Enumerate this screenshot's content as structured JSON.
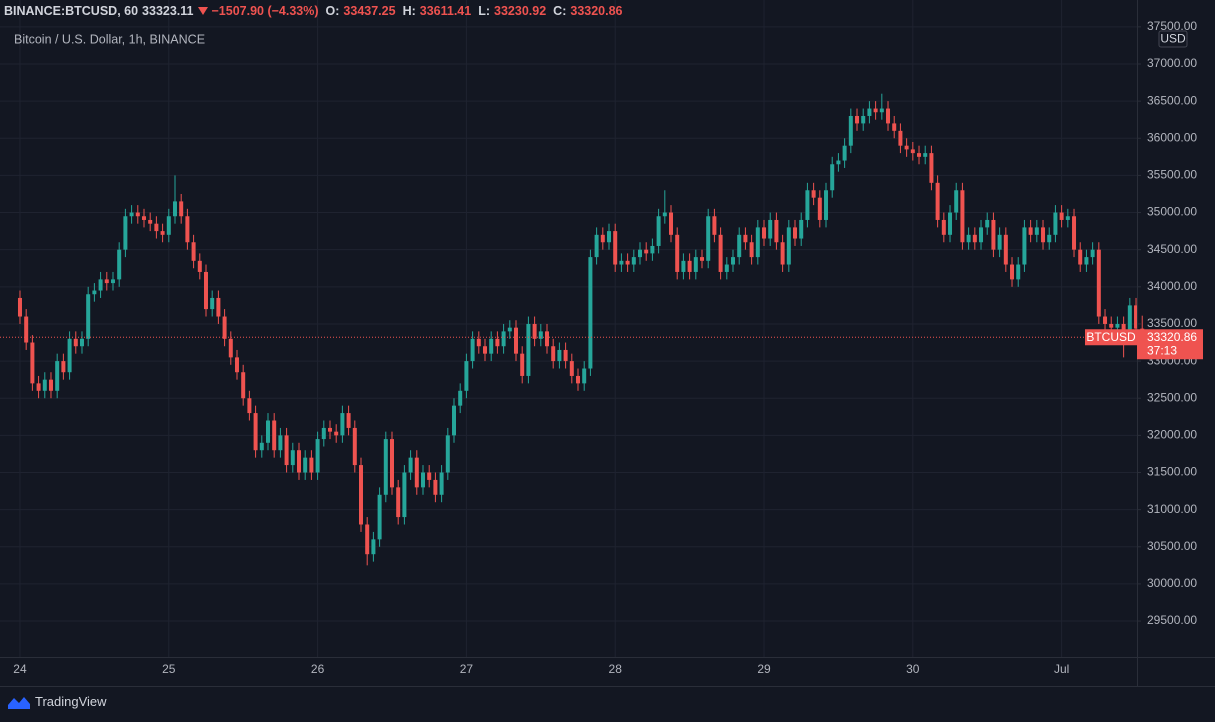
{
  "chart_data": {
    "type": "candlestick",
    "header": {
      "symbol": "BINANCE:BTCUSD, 60",
      "price": 33323.11,
      "change": "−1507.90 (−4.33%)",
      "open_label": "O:",
      "open": 33437.25,
      "high_label": "H:",
      "high": 33611.41,
      "low_label": "L:",
      "low": 33230.92,
      "close_label": "C:",
      "close": 33320.86
    },
    "title": "Bitcoin / U.S. Dollar, 1h, BINANCE",
    "currency": "USD",
    "last_price": {
      "name": "BTCUSD",
      "value": 33320.86,
      "countdown": "37:13"
    },
    "up_color": "#26a69a",
    "down_color": "#ef5350",
    "ylim": [
      29016,
      37673
    ],
    "yticks": [
      {
        "value": 37500,
        "label": "37500.00"
      },
      {
        "value": 37000,
        "label": "37000.00"
      },
      {
        "value": 36500,
        "label": "36500.00"
      },
      {
        "value": 36000,
        "label": "36000.00"
      },
      {
        "value": 35500,
        "label": "35500.00"
      },
      {
        "value": 35000,
        "label": "35000.00"
      },
      {
        "value": 34500,
        "label": "34500.00"
      },
      {
        "value": 34000,
        "label": "34000.00"
      },
      {
        "value": 33500,
        "label": "33500.00"
      },
      {
        "value": 33000,
        "label": "33000.00"
      },
      {
        "value": 32500,
        "label": "32500.00"
      },
      {
        "value": 32000,
        "label": "32000.00"
      },
      {
        "value": 31500,
        "label": "31500.00"
      },
      {
        "value": 31000,
        "label": "31000.00"
      },
      {
        "value": 30500,
        "label": "30500.00"
      },
      {
        "value": 30000,
        "label": "30000.00"
      },
      {
        "value": 29500,
        "label": "29500.00"
      }
    ],
    "xlim": [
      -1.61,
      181.77
    ],
    "xticks": [
      {
        "value": 0,
        "label": "24"
      },
      {
        "value": 24,
        "label": "25"
      },
      {
        "value": 48,
        "label": "26"
      },
      {
        "value": 72,
        "label": "27"
      },
      {
        "value": 96,
        "label": "28"
      },
      {
        "value": 120,
        "label": "29"
      },
      {
        "value": 144,
        "label": "30"
      },
      {
        "value": 168,
        "label": "Jul"
      }
    ],
    "grid": true,
    "candles": [
      [
        33850,
        33950,
        33500,
        33600
      ],
      [
        33600,
        33700,
        33150,
        33250
      ],
      [
        33250,
        33350,
        32600,
        32700
      ],
      [
        32700,
        32800,
        32500,
        32600
      ],
      [
        32600,
        32850,
        32500,
        32750
      ],
      [
        32750,
        32850,
        32500,
        32600
      ],
      [
        32600,
        33100,
        32500,
        33000
      ],
      [
        33000,
        33100,
        32750,
        32850
      ],
      [
        32850,
        33400,
        32750,
        33300
      ],
      [
        33300,
        33400,
        33100,
        33200
      ],
      [
        33200,
        33400,
        33100,
        33300
      ],
      [
        33300,
        34000,
        33200,
        33900
      ],
      [
        33900,
        34050,
        33800,
        33950
      ],
      [
        33950,
        34200,
        33850,
        34100
      ],
      [
        34100,
        34200,
        33950,
        34050
      ],
      [
        34050,
        34200,
        33950,
        34100
      ],
      [
        34100,
        34600,
        34000,
        34500
      ],
      [
        34500,
        35050,
        34400,
        34950
      ],
      [
        34950,
        35100,
        34850,
        35000
      ],
      [
        35000,
        35100,
        34850,
        34950
      ],
      [
        34950,
        35050,
        34800,
        34900
      ],
      [
        34900,
        35000,
        34750,
        34850
      ],
      [
        34850,
        34950,
        34650,
        34750
      ],
      [
        34750,
        34850,
        34600,
        34700
      ],
      [
        34700,
        35050,
        34600,
        34950
      ],
      [
        34950,
        35500,
        34850,
        35150
      ],
      [
        35150,
        35250,
        34850,
        34950
      ],
      [
        34950,
        35050,
        34500,
        34600
      ],
      [
        34600,
        34700,
        34250,
        34350
      ],
      [
        34350,
        34450,
        34100,
        34200
      ],
      [
        34200,
        34300,
        33600,
        33700
      ],
      [
        33700,
        33950,
        33600,
        33850
      ],
      [
        33850,
        33950,
        33500,
        33600
      ],
      [
        33600,
        33700,
        33200,
        33300
      ],
      [
        33300,
        33400,
        32950,
        33050
      ],
      [
        33050,
        33150,
        32750,
        32850
      ],
      [
        32850,
        32950,
        32400,
        32500
      ],
      [
        32500,
        32600,
        32200,
        32300
      ],
      [
        32300,
        32400,
        31700,
        31800
      ],
      [
        31800,
        32000,
        31700,
        31900
      ],
      [
        31900,
        32300,
        31800,
        32200
      ],
      [
        32200,
        32300,
        31700,
        31800
      ],
      [
        31800,
        32100,
        31700,
        32000
      ],
      [
        32000,
        32100,
        31500,
        31600
      ],
      [
        31600,
        31900,
        31500,
        31800
      ],
      [
        31800,
        31900,
        31400,
        31500
      ],
      [
        31500,
        31800,
        31400,
        31700
      ],
      [
        31700,
        31800,
        31400,
        31500
      ],
      [
        31500,
        32050,
        31400,
        31950
      ],
      [
        31950,
        32200,
        31850,
        32100
      ],
      [
        32100,
        32200,
        31950,
        32050
      ],
      [
        32050,
        32150,
        31900,
        32000
      ],
      [
        32000,
        32400,
        31900,
        32300
      ],
      [
        32300,
        32400,
        32000,
        32100
      ],
      [
        32100,
        32200,
        31500,
        31600
      ],
      [
        31600,
        31700,
        30700,
        30800
      ],
      [
        30800,
        30900,
        30250,
        30400
      ],
      [
        30400,
        30700,
        30300,
        30600
      ],
      [
        30600,
        31300,
        30500,
        31200
      ],
      [
        31200,
        32050,
        31100,
        31950
      ],
      [
        31950,
        32050,
        31200,
        31300
      ],
      [
        31300,
        31400,
        30800,
        30900
      ],
      [
        30900,
        31600,
        30800,
        31500
      ],
      [
        31500,
        31800,
        31400,
        31700
      ],
      [
        31700,
        31800,
        31200,
        31300
      ],
      [
        31300,
        31600,
        31200,
        31500
      ],
      [
        31500,
        31600,
        31300,
        31400
      ],
      [
        31400,
        31500,
        31100,
        31200
      ],
      [
        31200,
        31600,
        31100,
        31500
      ],
      [
        31500,
        32100,
        31400,
        32000
      ],
      [
        32000,
        32500,
        31900,
        32400
      ],
      [
        32400,
        32700,
        32300,
        32600
      ],
      [
        32600,
        33100,
        32500,
        33000
      ],
      [
        33000,
        33400,
        32900,
        33300
      ],
      [
        33300,
        33400,
        33100,
        33200
      ],
      [
        33200,
        33300,
        33000,
        33100
      ],
      [
        33100,
        33400,
        33000,
        33300
      ],
      [
        33300,
        33400,
        33100,
        33200
      ],
      [
        33200,
        33500,
        33100,
        33400
      ],
      [
        33400,
        33550,
        33300,
        33450
      ],
      [
        33450,
        33550,
        33000,
        33100
      ],
      [
        33100,
        33200,
        32700,
        32800
      ],
      [
        32800,
        33600,
        32700,
        33500
      ],
      [
        33500,
        33600,
        33200,
        33300
      ],
      [
        33300,
        33500,
        33200,
        33400
      ],
      [
        33400,
        33500,
        33100,
        33200
      ],
      [
        33200,
        33300,
        32900,
        33000
      ],
      [
        33000,
        33250,
        32900,
        33150
      ],
      [
        33150,
        33250,
        32900,
        33000
      ],
      [
        33000,
        33100,
        32700,
        32800
      ],
      [
        32800,
        32900,
        32600,
        32700
      ],
      [
        32700,
        33000,
        32600,
        32900
      ],
      [
        32900,
        34500,
        32800,
        34400
      ],
      [
        34400,
        34800,
        34300,
        34700
      ],
      [
        34700,
        34800,
        34500,
        34600
      ],
      [
        34600,
        34850,
        34500,
        34750
      ],
      [
        34750,
        34850,
        34200,
        34300
      ],
      [
        34300,
        34450,
        34200,
        34350
      ],
      [
        34350,
        34450,
        34200,
        34300
      ],
      [
        34300,
        34500,
        34200,
        34400
      ],
      [
        34400,
        34600,
        34300,
        34500
      ],
      [
        34500,
        34600,
        34350,
        34450
      ],
      [
        34450,
        34650,
        34350,
        34550
      ],
      [
        34550,
        35050,
        34450,
        34950
      ],
      [
        34950,
        35300,
        34850,
        35000
      ],
      [
        35000,
        35100,
        34600,
        34700
      ],
      [
        34700,
        34800,
        34100,
        34200
      ],
      [
        34200,
        34450,
        34100,
        34350
      ],
      [
        34350,
        34450,
        34100,
        34200
      ],
      [
        34200,
        34500,
        34100,
        34400
      ],
      [
        34400,
        34500,
        34250,
        34350
      ],
      [
        34350,
        35050,
        34250,
        34950
      ],
      [
        34950,
        35050,
        34600,
        34700
      ],
      [
        34700,
        34800,
        34100,
        34200
      ],
      [
        34200,
        34400,
        34100,
        34300
      ],
      [
        34300,
        34500,
        34200,
        34400
      ],
      [
        34400,
        34800,
        34300,
        34700
      ],
      [
        34700,
        34800,
        34500,
        34600
      ],
      [
        34600,
        34700,
        34300,
        34400
      ],
      [
        34400,
        34900,
        34300,
        34800
      ],
      [
        34800,
        34900,
        34550,
        34650
      ],
      [
        34650,
        35000,
        34550,
        34900
      ],
      [
        34900,
        35000,
        34500,
        34600
      ],
      [
        34600,
        34700,
        34200,
        34300
      ],
      [
        34300,
        34900,
        34200,
        34800
      ],
      [
        34800,
        34900,
        34550,
        34650
      ],
      [
        34650,
        35000,
        34550,
        34900
      ],
      [
        34900,
        35400,
        34800,
        35300
      ],
      [
        35300,
        35400,
        35100,
        35200
      ],
      [
        35200,
        35300,
        34800,
        34900
      ],
      [
        34900,
        35400,
        34800,
        35300
      ],
      [
        35300,
        35750,
        35200,
        35650
      ],
      [
        35650,
        35800,
        35550,
        35700
      ],
      [
        35700,
        36000,
        35600,
        35900
      ],
      [
        35900,
        36400,
        35800,
        36300
      ],
      [
        36300,
        36400,
        36100,
        36200
      ],
      [
        36200,
        36400,
        36100,
        36300
      ],
      [
        36300,
        36500,
        36200,
        36400
      ],
      [
        36400,
        36500,
        36250,
        36350
      ],
      [
        36350,
        36600,
        36250,
        36400
      ],
      [
        36400,
        36500,
        36100,
        36200
      ],
      [
        36200,
        36300,
        36000,
        36100
      ],
      [
        36100,
        36200,
        35800,
        35900
      ],
      [
        35900,
        36000,
        35750,
        35850
      ],
      [
        35850,
        35950,
        35700,
        35800
      ],
      [
        35800,
        35900,
        35650,
        35750
      ],
      [
        35750,
        35900,
        35650,
        35800
      ],
      [
        35800,
        35900,
        35300,
        35400
      ],
      [
        35400,
        35500,
        34800,
        34900
      ],
      [
        34900,
        35000,
        34600,
        34700
      ],
      [
        34700,
        35100,
        34600,
        35000
      ],
      [
        35000,
        35400,
        34900,
        35300
      ],
      [
        35300,
        35400,
        34500,
        34600
      ],
      [
        34600,
        34800,
        34500,
        34700
      ],
      [
        34700,
        34800,
        34500,
        34600
      ],
      [
        34600,
        34900,
        34500,
        34800
      ],
      [
        34800,
        35000,
        34700,
        34900
      ],
      [
        34900,
        35000,
        34400,
        34500
      ],
      [
        34500,
        34800,
        34400,
        34700
      ],
      [
        34700,
        34800,
        34200,
        34300
      ],
      [
        34300,
        34400,
        34000,
        34100
      ],
      [
        34100,
        34400,
        34000,
        34300
      ],
      [
        34300,
        34900,
        34200,
        34800
      ],
      [
        34800,
        34900,
        34600,
        34700
      ],
      [
        34700,
        34900,
        34600,
        34800
      ],
      [
        34800,
        34900,
        34500,
        34600
      ],
      [
        34600,
        34800,
        34500,
        34700
      ],
      [
        34700,
        35100,
        34600,
        35000
      ],
      [
        35000,
        35100,
        34800,
        34900
      ],
      [
        34900,
        35050,
        34800,
        34950
      ],
      [
        34950,
        35050,
        34400,
        34500
      ],
      [
        34500,
        34600,
        34200,
        34300
      ],
      [
        34300,
        34500,
        34200,
        34400
      ],
      [
        34400,
        34600,
        34300,
        34500
      ],
      [
        34500,
        34600,
        33500,
        33600
      ],
      [
        33600,
        33700,
        33400,
        33500
      ],
      [
        33500,
        33600,
        33350,
        33450
      ],
      [
        33450,
        33600,
        33350,
        33500
      ],
      [
        33500,
        33600,
        33050,
        33350
      ],
      [
        33350,
        33850,
        33250,
        33750
      ],
      [
        33750,
        33850,
        33400,
        33437.25
      ],
      [
        33437.25,
        33611.41,
        33230.92,
        33320.86
      ]
    ]
  },
  "brand": "TradingView"
}
